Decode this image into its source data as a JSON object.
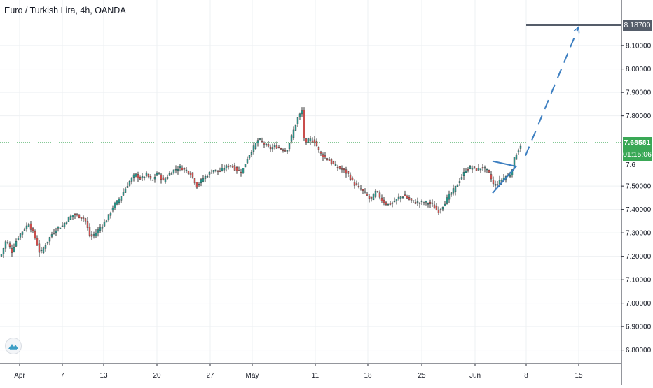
{
  "header": {
    "title": "Euro / Turkish Lira, 4h, OANDA"
  },
  "price_tags": {
    "target": "8.18700",
    "last": "7.68581",
    "countdown": "01:15:06",
    "hidden": "7.6"
  },
  "colors": {
    "up": "#26a69a",
    "down": "#ef5350",
    "candle_body": "#3b3b3b",
    "last_price_line": "#3aa856",
    "drawing": "#3d7fc1",
    "target_line": "#555d6a"
  },
  "chart_data": {
    "type": "candlestick",
    "symbol": "Euro / Turkish Lira",
    "interval": "4h",
    "source": "OANDA",
    "y_ticks": [
      "8.10000",
      "8.00000",
      "7.90000",
      "7.80000",
      "7.50000",
      "7.40000",
      "7.30000",
      "7.20000",
      "7.10000",
      "7.00000",
      "6.90000",
      "6.80000"
    ],
    "ylim": [
      6.75,
      8.22
    ],
    "x_ticks": [
      "Apr",
      "7",
      "13",
      "20",
      "27",
      "May",
      "11",
      "18",
      "25",
      "Jun",
      "8",
      "15"
    ],
    "last_price": 7.68581,
    "target_price": 8.187,
    "close_path": [
      [
        0,
        7.2
      ],
      [
        8,
        7.27
      ],
      [
        16,
        7.22
      ],
      [
        24,
        7.28
      ],
      [
        32,
        7.31
      ],
      [
        40,
        7.34
      ],
      [
        48,
        7.29
      ],
      [
        56,
        7.21
      ],
      [
        64,
        7.25
      ],
      [
        72,
        7.29
      ],
      [
        80,
        7.32
      ],
      [
        88,
        7.33
      ],
      [
        96,
        7.36
      ],
      [
        104,
        7.38
      ],
      [
        112,
        7.37
      ],
      [
        120,
        7.36
      ],
      [
        128,
        7.28
      ],
      [
        136,
        7.3
      ],
      [
        144,
        7.33
      ],
      [
        152,
        7.36
      ],
      [
        160,
        7.41
      ],
      [
        168,
        7.44
      ],
      [
        176,
        7.48
      ],
      [
        184,
        7.52
      ],
      [
        192,
        7.55
      ],
      [
        200,
        7.53
      ],
      [
        208,
        7.55
      ],
      [
        216,
        7.52
      ],
      [
        224,
        7.56
      ],
      [
        232,
        7.52
      ],
      [
        240,
        7.55
      ],
      [
        248,
        7.57
      ],
      [
        256,
        7.58
      ],
      [
        264,
        7.57
      ],
      [
        272,
        7.55
      ],
      [
        280,
        7.5
      ],
      [
        288,
        7.53
      ],
      [
        296,
        7.55
      ],
      [
        304,
        7.57
      ],
      [
        312,
        7.56
      ],
      [
        320,
        7.58
      ],
      [
        328,
        7.59
      ],
      [
        336,
        7.57
      ],
      [
        344,
        7.56
      ],
      [
        352,
        7.62
      ],
      [
        360,
        7.66
      ],
      [
        368,
        7.7
      ],
      [
        376,
        7.68
      ],
      [
        384,
        7.66
      ],
      [
        392,
        7.67
      ],
      [
        400,
        7.66
      ],
      [
        408,
        7.65
      ],
      [
        416,
        7.72
      ],
      [
        424,
        7.79
      ],
      [
        430,
        7.82
      ],
      [
        434,
        7.67
      ],
      [
        440,
        7.7
      ],
      [
        448,
        7.69
      ],
      [
        456,
        7.64
      ],
      [
        464,
        7.62
      ],
      [
        472,
        7.6
      ],
      [
        480,
        7.58
      ],
      [
        488,
        7.57
      ],
      [
        496,
        7.55
      ],
      [
        504,
        7.51
      ],
      [
        512,
        7.49
      ],
      [
        520,
        7.47
      ],
      [
        528,
        7.44
      ],
      [
        536,
        7.48
      ],
      [
        544,
        7.44
      ],
      [
        552,
        7.42
      ],
      [
        560,
        7.43
      ],
      [
        568,
        7.45
      ],
      [
        576,
        7.46
      ],
      [
        584,
        7.44
      ],
      [
        592,
        7.43
      ],
      [
        600,
        7.43
      ],
      [
        608,
        7.43
      ],
      [
        616,
        7.42
      ],
      [
        624,
        7.39
      ],
      [
        632,
        7.42
      ],
      [
        640,
        7.46
      ],
      [
        648,
        7.49
      ],
      [
        656,
        7.53
      ],
      [
        664,
        7.57
      ],
      [
        672,
        7.58
      ],
      [
        680,
        7.57
      ],
      [
        688,
        7.58
      ],
      [
        696,
        7.56
      ],
      [
        704,
        7.5
      ],
      [
        712,
        7.52
      ],
      [
        720,
        7.54
      ],
      [
        728,
        7.55
      ],
      [
        734,
        7.63
      ],
      [
        740,
        7.66
      ],
      [
        744,
        7.69
      ]
    ],
    "drawings": {
      "triangle": {
        "from_date_index": 703,
        "to_date_index": 737,
        "top": [
          7.606,
          7.584
        ],
        "bottom": [
          7.47,
          7.585
        ]
      },
      "projection": {
        "from": [
          750,
          7.63
        ],
        "to": [
          826,
          8.18
        ]
      }
    }
  }
}
